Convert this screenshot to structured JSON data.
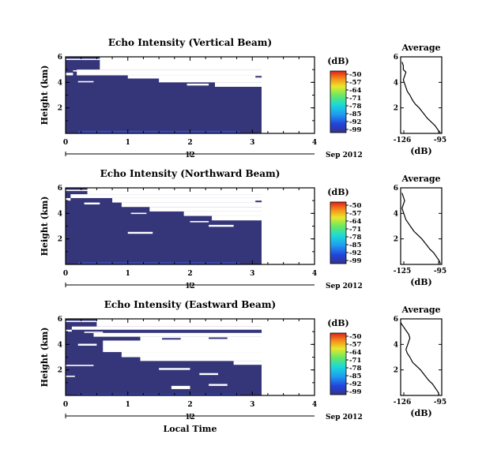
{
  "chart_data": [
    {
      "type": "heatmap",
      "title": "Echo Intensity (Vertical Beam)",
      "ylabel": "Height (km)",
      "xlabel": "",
      "xlim": [
        0,
        4
      ],
      "ylim": [
        0,
        6
      ],
      "xticks": [
        "0",
        "1",
        "2",
        "3",
        "4"
      ],
      "yticks": [
        "6",
        "4",
        "2"
      ],
      "colorbar": {
        "label": "(dB)",
        "ticks": [
          "-50",
          "-57",
          "-64",
          "-71",
          "-78",
          "-85",
          "-92",
          "-99"
        ]
      },
      "time_axis": {
        "marker": "12",
        "date_label": "Sep 2012"
      },
      "data_extent": {
        "x_end": 3.15,
        "top": 6
      },
      "gaps": [
        {
          "x0": 0.0,
          "x1": 0.55,
          "y0": 5.75,
          "y1": 5.85
        },
        {
          "x0": 0.55,
          "x1": 4.0,
          "y0": 5.0,
          "y1": 6.0
        },
        {
          "x0": 0.0,
          "x1": 0.12,
          "y0": 4.55,
          "y1": 4.75
        },
        {
          "x0": 0.12,
          "x1": 0.32,
          "y0": 4.85,
          "y1": 4.95
        },
        {
          "x0": 0.2,
          "x1": 0.45,
          "y0": 4.0,
          "y1": 4.1
        },
        {
          "x0": 0.18,
          "x1": 4.0,
          "y0": 4.55,
          "y1": 5.0
        },
        {
          "x0": 1.0,
          "x1": 3.15,
          "y0": 4.3,
          "y1": 4.55
        },
        {
          "x0": 1.5,
          "x1": 3.15,
          "y0": 4.0,
          "y1": 4.3
        },
        {
          "x0": 2.4,
          "x1": 3.15,
          "y0": 3.65,
          "y1": 4.0
        },
        {
          "x0": 1.95,
          "x1": 2.3,
          "y0": 3.75,
          "y1": 3.9
        },
        {
          "x0": 2.0,
          "x1": 2.35,
          "y0": 4.65,
          "y1": 4.85
        },
        {
          "x0": 2.65,
          "x1": 3.15,
          "y0": 4.65,
          "y1": 4.85
        },
        {
          "x0": 3.15,
          "x1": 4.0,
          "y0": 0.0,
          "y1": 4.55
        }
      ],
      "strips": [
        {
          "x0": 3.15,
          "x1": 3.15,
          "y0": 0.0,
          "y1": 0.0
        },
        {
          "x0": 3.05,
          "x1": 3.15,
          "y0": 4.45,
          "y1": 4.5
        }
      ],
      "echo": {
        "intensity": [
          -99,
          -97,
          -95,
          -93,
          -93,
          -94,
          -95,
          -96,
          -97,
          -98,
          -99,
          -99,
          -99,
          -99,
          -99,
          -99
        ],
        "bottom_bands": [
          {
            "x0": 0.2,
            "x1": 2.8,
            "y0": 0.05,
            "y1": 0.2
          }
        ]
      }
    },
    {
      "type": "heatmap",
      "title": "Echo Intensity (Northward Beam)",
      "ylabel": "Height (km)",
      "xlabel": "",
      "xlim": [
        0,
        4
      ],
      "ylim": [
        0,
        6
      ],
      "xticks": [
        "0",
        "1",
        "2",
        "3",
        "4"
      ],
      "yticks": [
        "6",
        "4",
        "2"
      ],
      "colorbar": {
        "label": "(dB)",
        "ticks": [
          "-50",
          "-57",
          "-64",
          "-71",
          "-78",
          "-85",
          "-92",
          "-99"
        ]
      },
      "time_axis": {
        "marker": "12",
        "date_label": "Sep 2012"
      },
      "data_extent": {
        "x_end": 3.15,
        "top": 6
      },
      "gaps": [
        {
          "x0": 0.0,
          "x1": 0.35,
          "y0": 5.75,
          "y1": 5.85
        },
        {
          "x0": 0.35,
          "x1": 4.0,
          "y0": 5.5,
          "y1": 6.0
        },
        {
          "x0": 0.0,
          "x1": 0.08,
          "y0": 5.0,
          "y1": 5.2
        },
        {
          "x0": 0.08,
          "x1": 4.0,
          "y0": 5.2,
          "y1": 5.5
        },
        {
          "x0": 0.3,
          "x1": 0.55,
          "y0": 4.7,
          "y1": 4.85
        },
        {
          "x0": 0.75,
          "x1": 4.0,
          "y0": 4.85,
          "y1": 5.2
        },
        {
          "x0": 0.9,
          "x1": 4.0,
          "y0": 4.5,
          "y1": 4.85
        },
        {
          "x0": 1.35,
          "x1": 4.0,
          "y0": 4.15,
          "y1": 4.5
        },
        {
          "x0": 1.9,
          "x1": 4.0,
          "y0": 3.8,
          "y1": 4.15
        },
        {
          "x0": 2.35,
          "x1": 4.0,
          "y0": 3.45,
          "y1": 3.8
        },
        {
          "x0": 1.05,
          "x1": 1.3,
          "y0": 3.95,
          "y1": 4.05
        },
        {
          "x0": 2.0,
          "x1": 2.3,
          "y0": 3.3,
          "y1": 3.4
        },
        {
          "x0": 1.0,
          "x1": 1.4,
          "y0": 2.4,
          "y1": 2.55
        },
        {
          "x0": 2.3,
          "x1": 2.7,
          "y0": 2.95,
          "y1": 3.1
        },
        {
          "x0": 3.15,
          "x1": 4.0,
          "y0": 0.0,
          "y1": 3.45
        },
        {
          "x0": 3.05,
          "x1": 3.15,
          "y0": 4.6,
          "y1": 4.65
        }
      ],
      "strips": [
        {
          "x0": 3.05,
          "x1": 3.15,
          "y0": 4.95,
          "y1": 5.0
        }
      ],
      "echo": {
        "intensity": [
          -99,
          -98,
          -96,
          -94,
          -94,
          -95,
          -96,
          -97,
          -98,
          -99,
          -99,
          -99,
          -99,
          -99,
          -99,
          -99
        ],
        "bottom_bands": [
          {
            "x0": 0.2,
            "x1": 2.8,
            "y0": 0.05,
            "y1": 0.18
          }
        ]
      }
    },
    {
      "type": "heatmap",
      "title": "Echo Intensity (Eastward Beam)",
      "ylabel": "Height (km)",
      "xlabel": "Local Time",
      "xlim": [
        0,
        4
      ],
      "ylim": [
        0,
        6
      ],
      "xticks": [
        "0",
        "1",
        "2",
        "3",
        "4"
      ],
      "yticks": [
        "6",
        "4",
        "2"
      ],
      "colorbar": {
        "label": "(dB)",
        "ticks": [
          "-50",
          "-57",
          "-64",
          "-71",
          "-78",
          "-85",
          "-92",
          "-99"
        ]
      },
      "time_axis": {
        "marker": "12",
        "date_label": "Sep 2012"
      },
      "data_extent": {
        "x_end": 3.15,
        "top": 6
      },
      "gaps": [
        {
          "x0": 0.0,
          "x1": 0.5,
          "y0": 5.75,
          "y1": 5.85
        },
        {
          "x0": 0.5,
          "x1": 4.0,
          "y0": 5.4,
          "y1": 6.0
        },
        {
          "x0": 0.0,
          "x1": 0.1,
          "y0": 5.0,
          "y1": 5.15
        },
        {
          "x0": 0.1,
          "x1": 4.0,
          "y0": 5.15,
          "y1": 5.4
        },
        {
          "x0": 0.3,
          "x1": 0.6,
          "y0": 4.9,
          "y1": 5.0
        },
        {
          "x0": 0.45,
          "x1": 4.0,
          "y0": 4.6,
          "y1": 4.9
        },
        {
          "x0": 0.2,
          "x1": 0.5,
          "y0": 3.9,
          "y1": 4.05
        },
        {
          "x0": 1.2,
          "x1": 4.0,
          "y0": 4.3,
          "y1": 4.6
        },
        {
          "x0": 0.6,
          "x1": 4.0,
          "y0": 3.4,
          "y1": 4.3
        },
        {
          "x0": 0.9,
          "x1": 4.0,
          "y0": 3.0,
          "y1": 3.4
        },
        {
          "x0": 1.2,
          "x1": 4.0,
          "y0": 2.7,
          "y1": 3.0
        },
        {
          "x0": 2.7,
          "x1": 4.0,
          "y0": 2.4,
          "y1": 2.7
        },
        {
          "x0": 1.5,
          "x1": 2.0,
          "y0": 2.0,
          "y1": 2.15
        },
        {
          "x0": 2.15,
          "x1": 2.45,
          "y0": 1.6,
          "y1": 1.75
        },
        {
          "x0": 1.7,
          "x1": 2.0,
          "y0": 0.5,
          "y1": 0.75
        },
        {
          "x0": 2.3,
          "x1": 2.6,
          "y0": 0.75,
          "y1": 0.9
        },
        {
          "x0": 3.15,
          "x1": 4.0,
          "y0": 0.0,
          "y1": 2.4
        },
        {
          "x0": 0.0,
          "x1": 0.45,
          "y0": 2.3,
          "y1": 2.4
        },
        {
          "x0": 0.0,
          "x1": 0.15,
          "y0": 1.45,
          "y1": 1.55
        }
      ],
      "strips": [
        {
          "x0": 1.55,
          "x1": 1.85,
          "y0": 4.45,
          "y1": 4.5
        },
        {
          "x0": 2.3,
          "x1": 2.6,
          "y0": 4.5,
          "y1": 4.55
        }
      ],
      "echo": {
        "intensity": [
          -99,
          -98,
          -97,
          -96,
          -96,
          -97,
          -98,
          -99,
          -99,
          -99,
          -99,
          -99,
          -99,
          -99,
          -99,
          -99
        ],
        "bottom_bands": [
          {
            "x0": 0.2,
            "x1": 2.8,
            "y0": 0.05,
            "y1": 0.12
          }
        ]
      }
    },
    {
      "type": "line",
      "title": "Average",
      "xlabel": "(dB)",
      "ylabel": "",
      "xlim": [
        -126,
        -95
      ],
      "ylim": [
        0,
        6
      ],
      "xticks": [
        "-126",
        "-95"
      ],
      "yticks": [
        "6",
        "4",
        "2"
      ],
      "series": [
        {
          "x": [
            -125,
            -124,
            -124,
            -122,
            -123,
            -124,
            -123,
            -122,
            -121,
            -119,
            -117,
            -115,
            -112,
            -109,
            -106,
            -103,
            -100,
            -98,
            -96
          ],
          "y": [
            5.6,
            5.3,
            5.0,
            4.8,
            4.5,
            4.2,
            3.9,
            3.6,
            3.3,
            3.0,
            2.6,
            2.3,
            2.0,
            1.6,
            1.2,
            0.9,
            0.6,
            0.3,
            0.05
          ]
        }
      ]
    },
    {
      "type": "line",
      "title": "Average",
      "xlabel": "(dB)",
      "ylabel": "",
      "xlim": [
        -126,
        -95
      ],
      "ylim": [
        0,
        6
      ],
      "xticks": [
        "-125",
        "-95"
      ],
      "yticks": [
        "6",
        "4",
        "2"
      ],
      "series": [
        {
          "x": [
            -125,
            -124,
            -123,
            -124,
            -125,
            -124,
            -123,
            -122,
            -120,
            -118,
            -116,
            -113,
            -110,
            -107,
            -104,
            -101,
            -99,
            -97,
            -96
          ],
          "y": [
            5.6,
            5.3,
            5.0,
            4.7,
            4.4,
            4.1,
            3.8,
            3.5,
            3.2,
            2.9,
            2.6,
            2.3,
            2.0,
            1.6,
            1.2,
            0.9,
            0.6,
            0.3,
            0.05
          ]
        }
      ]
    },
    {
      "type": "line",
      "title": "Average",
      "xlabel": "(dB)",
      "ylabel": "",
      "xlim": [
        -126,
        -95
      ],
      "ylim": [
        0,
        6
      ],
      "xticks": [
        "-126",
        "-95"
      ],
      "yticks": [
        "6",
        "4",
        "2"
      ],
      "series": [
        {
          "x": [
            -126,
            -124,
            -122,
            -120,
            -119,
            -120,
            -121,
            -122,
            -121,
            -119,
            -117,
            -114,
            -111,
            -108,
            -105,
            -102,
            -100,
            -98,
            -97
          ],
          "y": [
            5.7,
            5.4,
            5.1,
            4.8,
            4.5,
            4.2,
            3.9,
            3.6,
            3.3,
            3.0,
            2.6,
            2.3,
            2.0,
            1.6,
            1.2,
            0.9,
            0.6,
            0.3,
            0.05
          ]
        }
      ]
    }
  ],
  "colors": {
    "fill": "#35357a",
    "band": "#3a4fc8",
    "line": "#000000"
  }
}
